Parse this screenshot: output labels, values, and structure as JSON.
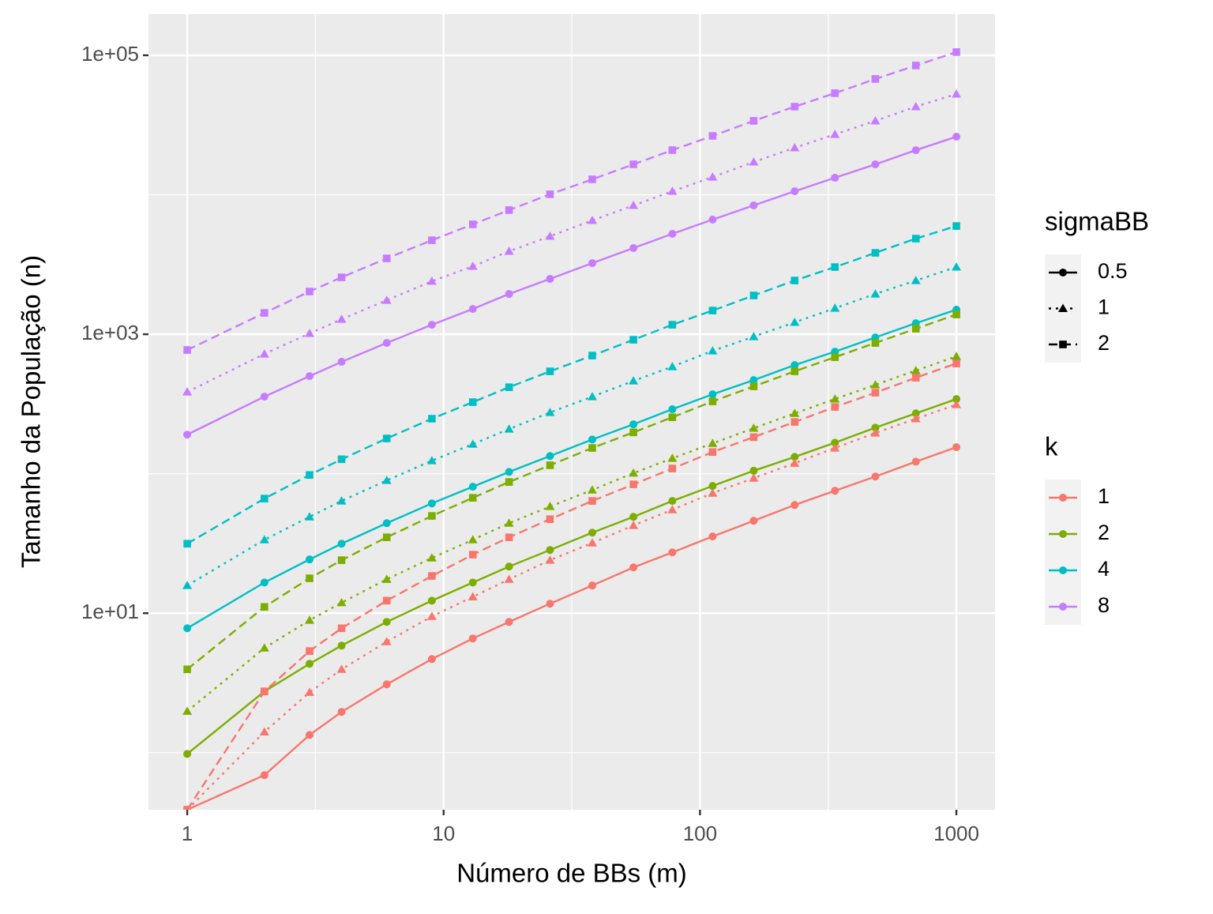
{
  "chart_data": {
    "type": "line",
    "x_label": "Número de BBs (m)",
    "y_label": "Tamanho da População (n)",
    "xscale": "log",
    "yscale": "log",
    "xlim": [
      0.706,
      1415
    ],
    "ylim": [
      0.39,
      197000
    ],
    "xticks": [
      1,
      10,
      100,
      1000
    ],
    "xminor": [
      3.162,
      31.62,
      316.2
    ],
    "yticks": [
      {
        "value": 10,
        "label": "1e+01"
      },
      {
        "value": 1000,
        "label": "1e+03"
      },
      {
        "value": 100000,
        "label": "1e+05"
      }
    ],
    "yminor": [
      1,
      100,
      10000
    ],
    "grid": true,
    "legend_position": "right",
    "legends": [
      {
        "title": "sigmaBB",
        "entries": [
          "0.5",
          "1",
          "2"
        ],
        "shapes": [
          "circle",
          "triangle",
          "square"
        ],
        "linetypes": [
          "solid",
          "dotted",
          "dashed"
        ]
      },
      {
        "title": "k",
        "entries": [
          "1",
          "2",
          "4",
          "8"
        ],
        "colors": [
          "#F8766D",
          "#7CAE00",
          "#00BFC4",
          "#C77CFF"
        ]
      }
    ],
    "x": [
      1,
      2,
      3,
      4,
      6,
      9,
      13,
      18,
      26,
      38,
      55,
      78,
      112,
      162,
      234,
      336,
      483,
      695,
      1000
    ],
    "series": [
      {
        "k": "8",
        "sigmaBB": "2",
        "values": [
          771,
          1422,
          2024,
          2559,
          3499,
          4721,
          6138,
          7762,
          10080,
          12900,
          16530,
          20900,
          26430,
          33870,
          42830,
          53500,
          67660,
          84490,
          105400
        ]
      },
      {
        "k": "8",
        "sigmaBB": "1",
        "values": [
          386,
          722,
          1014,
          1282,
          1753,
          2398,
          3070,
          3936,
          5043,
          6545,
          8390,
          10600,
          13400,
          17180,
          21730,
          27110,
          33880,
          42840,
          52740
        ]
      },
      {
        "k": "8",
        "sigmaBB": "0.5",
        "values": [
          190.6,
          357,
          501,
          634,
          866,
          1170,
          1518,
          1945,
          2494,
          3236,
          4148,
          5246,
          6634,
          8390,
          10600,
          13240,
          16520,
          20890,
          26080
        ]
      },
      {
        "k": "4",
        "sigmaBB": "2",
        "values": [
          31.5,
          66.3,
          98,
          127,
          179,
          248,
          326,
          417,
          542,
          703,
          913,
          1170,
          1479,
          1897,
          2428,
          3032,
          3834,
          4849,
          5972
        ]
      },
      {
        "k": "4",
        "sigmaBB": "1",
        "values": [
          15.8,
          33.6,
          49.1,
          63.8,
          89.5,
          124,
          163,
          209,
          275,
          357,
          463,
          586,
          760,
          962,
          1217,
          1538,
          1945,
          2428,
          3032
        ]
      },
      {
        "k": "4",
        "sigmaBB": "0.5",
        "values": [
          7.8,
          16.6,
          24.3,
          31.5,
          44.2,
          61.3,
          80.7,
          103,
          134,
          176,
          226,
          290,
          371,
          469,
          601,
          750,
          949,
          1200,
          1500
        ]
      },
      {
        "k": "2",
        "sigmaBB": "2",
        "values": [
          3.96,
          11.1,
          17.8,
          24,
          35,
          49.8,
          67.2,
          87.3,
          115,
          153,
          198,
          254,
          330,
          423,
          542,
          685,
          866,
          1096,
          1386
        ]
      },
      {
        "k": "2",
        "sigmaBB": "1",
        "values": [
          1.98,
          5.63,
          8.9,
          11.9,
          17.5,
          24.9,
          33.6,
          44.2,
          58.2,
          76.5,
          101,
          129,
          165,
          212,
          271,
          343,
          434,
          549,
          694
        ]
      },
      {
        "k": "2",
        "sigmaBB": "0.5",
        "values": [
          0.98,
          2.75,
          4.34,
          5.86,
          8.66,
          12.3,
          16.6,
          21.6,
          28.4,
          37.8,
          49.1,
          63.8,
          81.7,
          105,
          132,
          167,
          214,
          271,
          343
        ]
      },
      {
        "k": "1",
        "sigmaBB": "2",
        "values": [
          0.39,
          2.75,
          5.35,
          7.8,
          12.3,
          18.5,
          26.3,
          35,
          47.2,
          63.8,
          83.9,
          109,
          143,
          183,
          235,
          301,
          381,
          488,
          617
        ]
      },
      {
        "k": "1",
        "sigmaBB": "1",
        "values": [
          0.39,
          1.41,
          2.71,
          3.96,
          6.25,
          9.49,
          13.1,
          17.5,
          24,
          31.9,
          42.6,
          55.2,
          72.6,
          93,
          119,
          153,
          196,
          248,
          313
        ]
      },
      {
        "k": "1",
        "sigmaBB": "0.5",
        "values": [
          0.39,
          0.69,
          1.34,
          1.96,
          3.09,
          4.69,
          6.59,
          8.66,
          11.7,
          15.8,
          21.3,
          27.3,
          35.5,
          46,
          59.7,
          75.5,
          95.5,
          122,
          155
        ]
      }
    ]
  }
}
